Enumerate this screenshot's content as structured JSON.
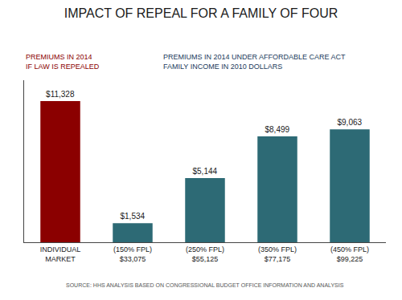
{
  "chart_data": {
    "type": "bar",
    "title": "IMPACT OF REPEAL FOR A FAMILY OF FOUR",
    "categories": [
      "INDIVIDUAL\nMARKET",
      "(150% FPL)\n$33,075",
      "(250% FPL)\n$55,125",
      "(350% FPL)\n$77,175",
      "(450% FPL)\n$99,225"
    ],
    "values": [
      11328,
      1534,
      5144,
      8499,
      9063
    ],
    "value_labels": [
      "$11,328",
      "$1,534",
      "$5,144",
      "$8,499",
      "$9,063"
    ],
    "colors": [
      "#8B0000",
      "#2D6A75",
      "#2D6A75",
      "#2D6A75",
      "#2D6A75"
    ],
    "ylim": [
      0,
      13000
    ],
    "grid": false,
    "data_labels": true,
    "tick_labels": "x",
    "annotations": [
      {
        "text": "PREMIUMS IN 2014\nIF LAW IS REPEALED",
        "color": "#8B0000"
      },
      {
        "text": "PREMIUMS IN 2014 UNDER AFFORDABLE CARE ACT\nFAMILY INCOME IN 2010 DOLLARS",
        "color": "#1A3A5C"
      },
      {
        "text": "SOURCE: HHS ANALYSIS BASED ON CONGRESSIONAL BUDGET OFFICE INFORMATION AND ANALYSIS",
        "color": "#555555"
      }
    ]
  }
}
